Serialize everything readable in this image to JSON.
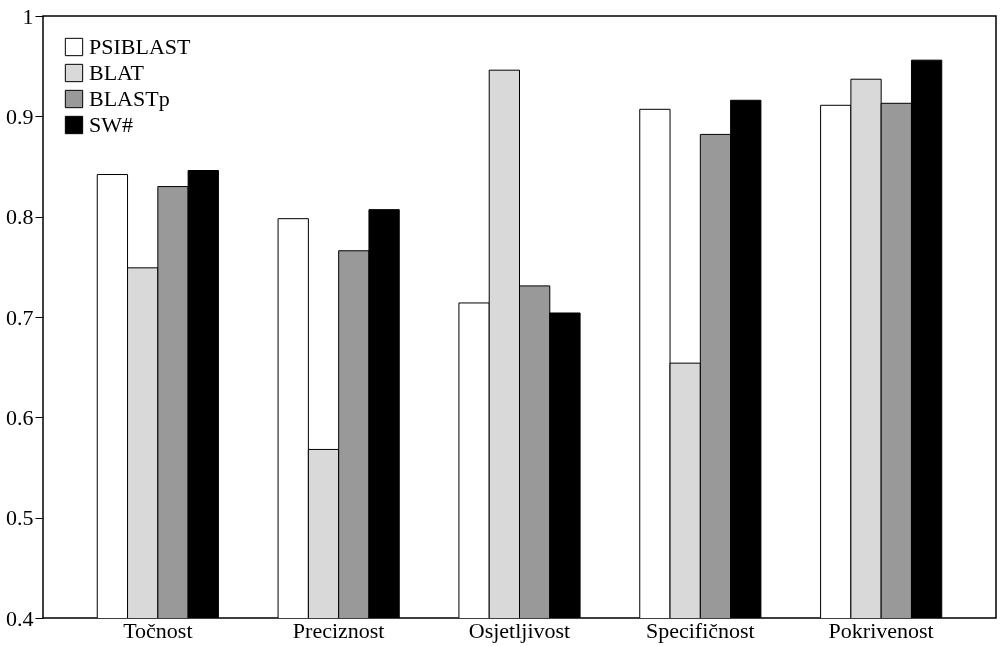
{
  "chart_data": {
    "type": "bar",
    "categories": [
      "Točnost",
      "Preciznost",
      "Osjetljivost",
      "Specifičnost",
      "Pokrivenost"
    ],
    "series": [
      {
        "name": "PSIBLAST",
        "color": "#ffffff",
        "values": [
          0.842,
          0.798,
          0.714,
          0.907,
          0.911
        ]
      },
      {
        "name": "BLAT",
        "color": "#d9d9d9",
        "values": [
          0.749,
          0.568,
          0.946,
          0.654,
          0.937
        ]
      },
      {
        "name": "BLASTp",
        "color": "#999999",
        "values": [
          0.83,
          0.766,
          0.731,
          0.882,
          0.913
        ]
      },
      {
        "name": "SW#",
        "color": "#000000",
        "values": [
          0.846,
          0.807,
          0.704,
          0.916,
          0.956
        ]
      }
    ],
    "ylim": [
      0.4,
      1
    ],
    "yticks": [
      0.4,
      0.5,
      0.6,
      0.7,
      0.8,
      0.9,
      {
        "value": 1,
        "label": "1"
      }
    ],
    "grid": false,
    "legend": "top left"
  }
}
